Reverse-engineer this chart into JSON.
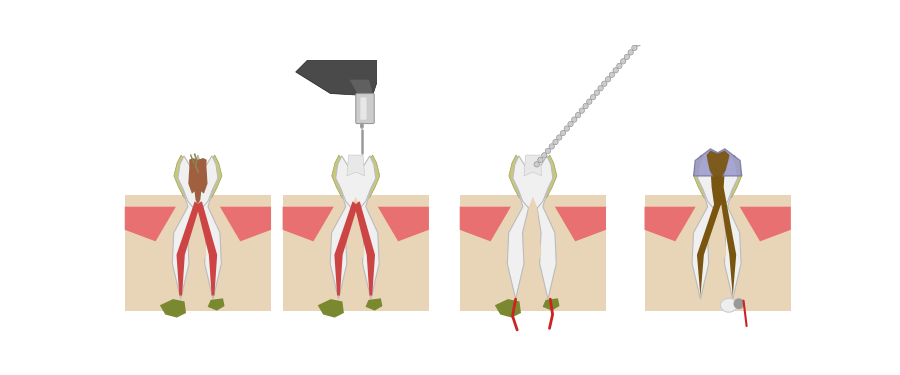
{
  "bg": "#ffffff",
  "gum_pink": "#e87070",
  "gum_beige": "#dfc4a8",
  "bone_beige": "#e8d5b8",
  "enamel_yellow": "#c8c87a",
  "tooth_white": "#f0f0f0",
  "tooth_gray": "#e0e0e0",
  "pulp_brown": "#a06040",
  "pulp_red": "#c85050",
  "canal_red": "#cc4444",
  "canal_brown": "#8B5030",
  "abscess_olive": "#7a8830",
  "abscess_dark": "#606820",
  "drill_light": "#cccccc",
  "drill_mid": "#999999",
  "drill_dark": "#555555",
  "drill_darkest": "#333333",
  "file_gray": "#aaaaaa",
  "file_blue_light": "#88ccff",
  "file_blue": "#4488ee",
  "file_blue_dark": "#2255bb",
  "crown_lavender": "#9999cc",
  "crown_lavender_edge": "#7777aa",
  "filling_brown": "#7a5510",
  "filling_dark": "#5a3d08",
  "white_sealant": "#eeeeee",
  "blood_red": "#cc2222"
}
